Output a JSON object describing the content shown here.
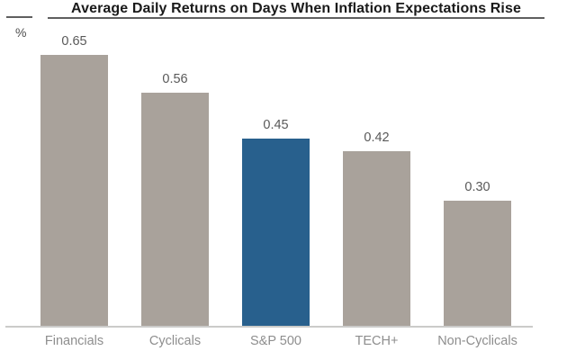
{
  "chart_data": {
    "type": "bar",
    "title": "Average Daily Returns on Days When Inflation Expectations Rise",
    "ylabel": "%",
    "xlabel": "",
    "categories": [
      "Financials",
      "Cyclicals",
      "S&P 500",
      "TECH+",
      "Non-Cyclicals"
    ],
    "values": [
      0.65,
      0.56,
      0.45,
      0.42,
      0.3
    ],
    "value_labels": [
      "0.65",
      "0.56",
      "0.45",
      "0.42",
      "0.30"
    ],
    "ylim": [
      0,
      0.7
    ],
    "grid": false,
    "legend": false,
    "highlight_index": 2,
    "colors": {
      "default_bar": "#a9a29b",
      "highlight_bar": "#28608d",
      "title_text": "#1a1a1a",
      "value_label_text": "#595959",
      "category_label_text": "#8e8e8e",
      "axis_line": "#cbcbc9",
      "rule_line": "#5f5f5f"
    }
  }
}
